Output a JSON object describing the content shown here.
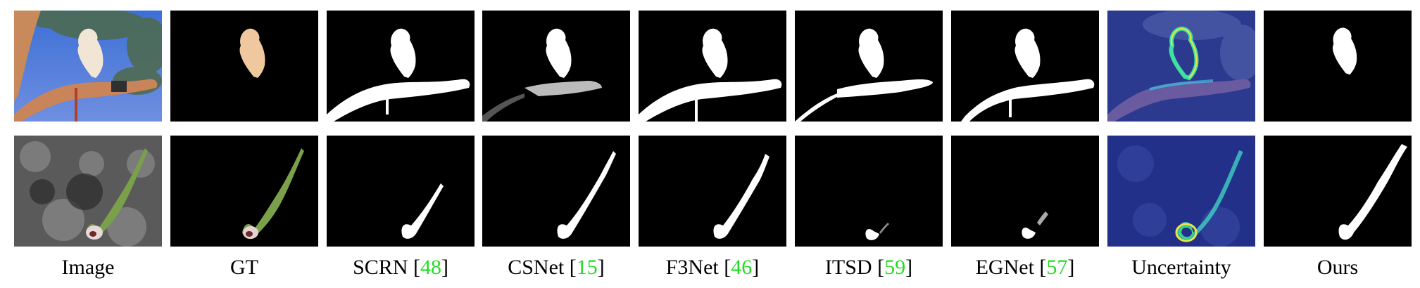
{
  "figure": {
    "columns": [
      {
        "key": "image",
        "label": "Image",
        "cite": ""
      },
      {
        "key": "gt",
        "label": "GT",
        "cite": ""
      },
      {
        "key": "scrn",
        "label": "SCRN",
        "cite": "48"
      },
      {
        "key": "csnet",
        "label": "CSNet",
        "cite": "15"
      },
      {
        "key": "f3net",
        "label": "F3Net",
        "cite": "46"
      },
      {
        "key": "itsd",
        "label": "ITSD",
        "cite": "59"
      },
      {
        "key": "egnet",
        "label": "EGNet",
        "cite": "57"
      },
      {
        "key": "uncertainty",
        "label": "Uncertainty",
        "cite": ""
      },
      {
        "key": "ours",
        "label": "Ours",
        "cite": ""
      }
    ],
    "rows": [
      {
        "subject": "cockatoo-on-branch"
      },
      {
        "subject": "flower-on-stem"
      }
    ],
    "colors": {
      "citation": "#22dd22",
      "background": "#000000",
      "mask": "#ffffff"
    }
  }
}
